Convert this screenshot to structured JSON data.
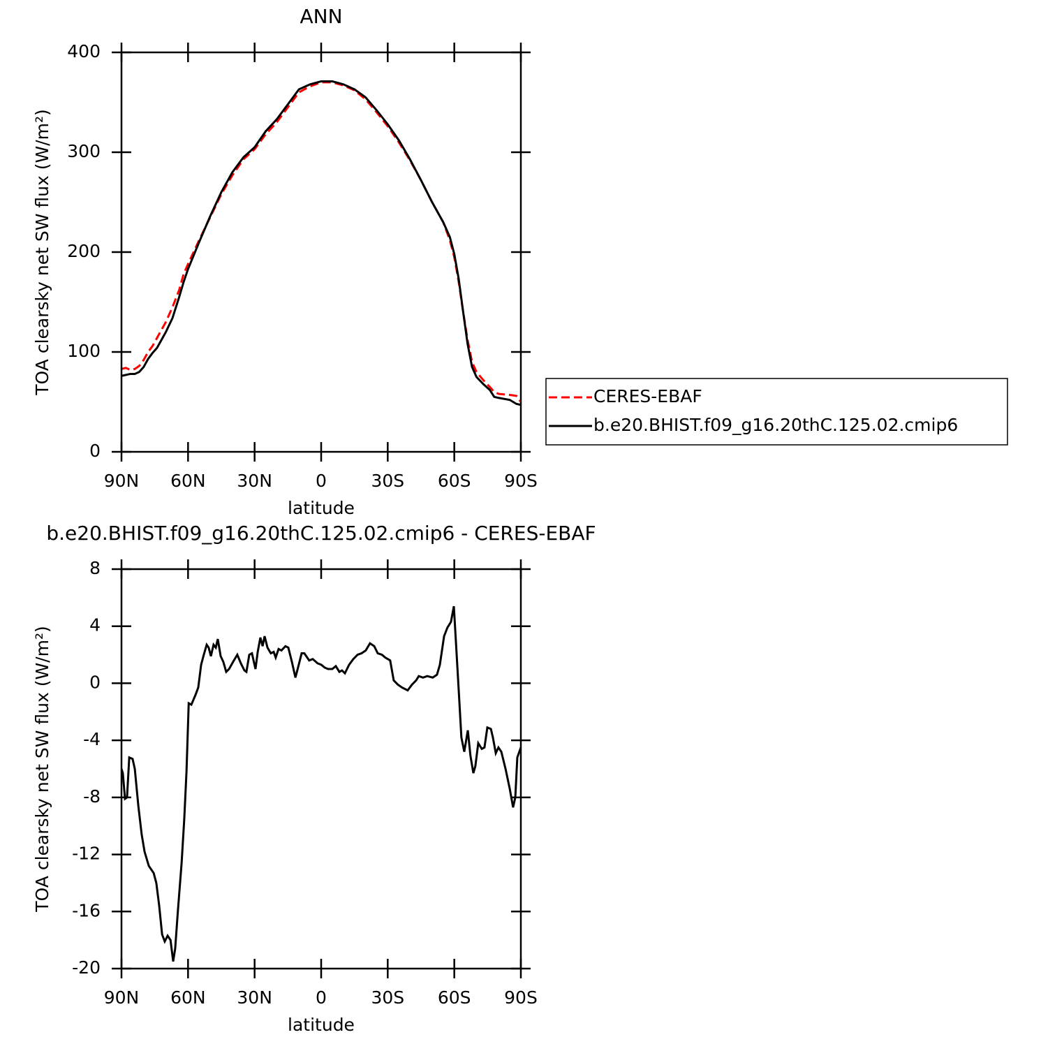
{
  "chart_data": [
    {
      "type": "line",
      "title": "ANN",
      "xlabel": "latitude",
      "ylabel": "TOA clearsky net SW flux (W/m²)",
      "xlim": [
        90,
        -90
      ],
      "ylim": [
        0,
        400
      ],
      "xticks": [
        {
          "value": 90,
          "label": "90N"
        },
        {
          "value": 60,
          "label": "60N"
        },
        {
          "value": 30,
          "label": "30N"
        },
        0,
        {
          "value": -30,
          "label": "30S"
        },
        {
          "value": -60,
          "label": "60S"
        },
        {
          "value": -90,
          "label": "90S"
        }
      ],
      "yticks": [
        0,
        100,
        200,
        300,
        400
      ],
      "legend": "right",
      "x": [
        90,
        88,
        86,
        84,
        82,
        80,
        78,
        76,
        74,
        72,
        70,
        67,
        64,
        62,
        60,
        55,
        50,
        45,
        40,
        35,
        30,
        25,
        20,
        15,
        10,
        5,
        0,
        -5,
        -10,
        -15,
        -20,
        -25,
        -30,
        -35,
        -40,
        -45,
        -50,
        -55,
        -58,
        -60,
        -62,
        -64,
        -66,
        -68,
        -70,
        -73,
        -76,
        -78,
        -80,
        -85,
        -88,
        -90
      ],
      "series": [
        {
          "name": "CERES-EBAF",
          "color": "#ff0000",
          "linestyle": "dashed",
          "values": [
            83,
            84,
            82,
            83,
            86,
            92,
            100,
            106,
            114,
            122,
            130,
            145,
            162,
            178,
            188,
            212,
            235,
            258,
            277,
            293,
            303,
            318,
            330,
            345,
            360,
            366,
            370,
            370,
            367,
            362,
            353,
            340,
            326,
            310,
            292,
            272,
            250,
            230,
            212,
            195,
            170,
            140,
            112,
            90,
            80,
            72,
            65,
            60,
            58,
            57,
            56,
            50
          ]
        },
        {
          "name": "b.e20.BHIST.f09_g16.20thC.125.02.cmip6",
          "color": "#000000",
          "linestyle": "solid",
          "values": [
            76,
            77,
            78,
            78,
            80,
            85,
            93,
            99,
            104,
            112,
            120,
            134,
            155,
            170,
            183,
            210,
            236,
            260,
            280,
            295,
            305,
            321,
            333,
            348,
            363,
            368,
            371,
            371,
            368,
            363,
            355,
            342,
            328,
            312,
            293,
            272,
            250,
            230,
            215,
            198,
            173,
            140,
            108,
            85,
            75,
            68,
            62,
            55,
            54,
            52,
            48,
            47
          ]
        }
      ]
    },
    {
      "type": "line",
      "title": "b.e20.BHIST.f09_g16.20thC.125.02.cmip6 - CERES-EBAF",
      "xlabel": "latitude",
      "ylabel": "TOA clearsky net SW flux (W/m²)",
      "xlim": [
        90,
        -90
      ],
      "ylim": [
        -20,
        8
      ],
      "xticks": [
        {
          "value": 90,
          "label": "90N"
        },
        {
          "value": 60,
          "label": "60N"
        },
        {
          "value": 30,
          "label": "30N"
        },
        0,
        {
          "value": -30,
          "label": "30S"
        },
        {
          "value": -60,
          "label": "60S"
        },
        {
          "value": -90,
          "label": "90S"
        }
      ],
      "yticks": [
        -20,
        -16,
        -12,
        -8,
        -4,
        0,
        4,
        8
      ],
      "x": [
        90,
        89.4,
        88.4,
        87.5,
        86.5,
        85,
        84,
        82.4,
        80.9,
        79.6,
        77.7,
        75.5,
        74.3,
        73,
        71.7,
        70.5,
        69.2,
        67.9,
        66.7,
        65.8,
        64.5,
        62.9,
        61.7,
        60.7,
        59.7,
        58.5,
        56.6,
        55.4,
        54.1,
        52.9,
        51.6,
        50.7,
        49.7,
        48.5,
        47.5,
        46.6,
        45.3,
        44.1,
        42.8,
        41.5,
        39.7,
        37.8,
        36.2,
        34.6,
        33.7,
        32.4,
        31.2,
        29.6,
        28.6,
        27.4,
        26.4,
        25.5,
        24.2,
        22.7,
        21.4,
        20.5,
        19.2,
        17.9,
        16.1,
        14.8,
        13.2,
        11.6,
        10.1,
        8.8,
        7.6,
        5.4,
        3.8,
        1.6,
        0,
        -1.6,
        -3.1,
        -5,
        -6.6,
        -8.2,
        -9.4,
        -10.7,
        -12.6,
        -14.5,
        -16.4,
        -18.2,
        -20.1,
        -22,
        -23.9,
        -25.5,
        -27.4,
        -28.9,
        -31.1,
        -32.7,
        -34.6,
        -36.5,
        -39,
        -40.9,
        -42.8,
        -44,
        -45.9,
        -47.8,
        -50.3,
        -52.2,
        -53.5,
        -55.4,
        -56.9,
        -58.5,
        -59.8,
        -60.7,
        -62,
        -63.2,
        -64.5,
        -66.1,
        -67.3,
        -68.6,
        -69.5,
        -70.8,
        -72.4,
        -73.6,
        -74.9,
        -76.5,
        -77.4,
        -78.7,
        -79.9,
        -81.2,
        -83.1,
        -85,
        -86.5,
        -87.5,
        -88.4,
        -90
      ],
      "series": [
        {
          "color": "#000000",
          "linestyle": "solid",
          "values": [
            -6,
            -6.3,
            -8.1,
            -8,
            -5.2,
            -5.3,
            -6,
            -8.6,
            -10.6,
            -11.8,
            -12.8,
            -13.3,
            -14,
            -15.6,
            -17.6,
            -18.1,
            -17.7,
            -18,
            -19.5,
            -18.6,
            -15.8,
            -12.6,
            -9.5,
            -6.2,
            -1.4,
            -1.5,
            -0.8,
            -0.3,
            1.3,
            2,
            2.7,
            2.5,
            1.9,
            2.7,
            2.5,
            3.1,
            1.9,
            1.5,
            0.8,
            1,
            1.5,
            2,
            1.4,
            0.9,
            0.8,
            2,
            2.1,
            1,
            2.2,
            3.2,
            2.6,
            3.3,
            2.5,
            2.1,
            2.2,
            1.8,
            2.4,
            2.3,
            2.6,
            2.5,
            1.5,
            0.4,
            1.3,
            2.1,
            2.1,
            1.6,
            1.7,
            1.4,
            1.3,
            1.1,
            1,
            1,
            1.2,
            0.8,
            0.9,
            0.7,
            1.3,
            1.7,
            2,
            2.1,
            2.3,
            2.8,
            2.6,
            2.1,
            2,
            1.8,
            1.6,
            0.2,
            -0.1,
            -0.3,
            -0.5,
            -0.1,
            0.2,
            0.5,
            0.4,
            0.5,
            0.4,
            0.6,
            1.3,
            3.3,
            3.9,
            4.3,
            5.4,
            3,
            -0.5,
            -3.8,
            -4.8,
            -3.3,
            -5.1,
            -6.3,
            -5.8,
            -4.2,
            -4.6,
            -4.5,
            -3.1,
            -3.2,
            -3.8,
            -4.9,
            -4.5,
            -4.8,
            -6,
            -7.4,
            -8.7,
            -8,
            -5.2,
            -4.5
          ]
        }
      ]
    }
  ]
}
